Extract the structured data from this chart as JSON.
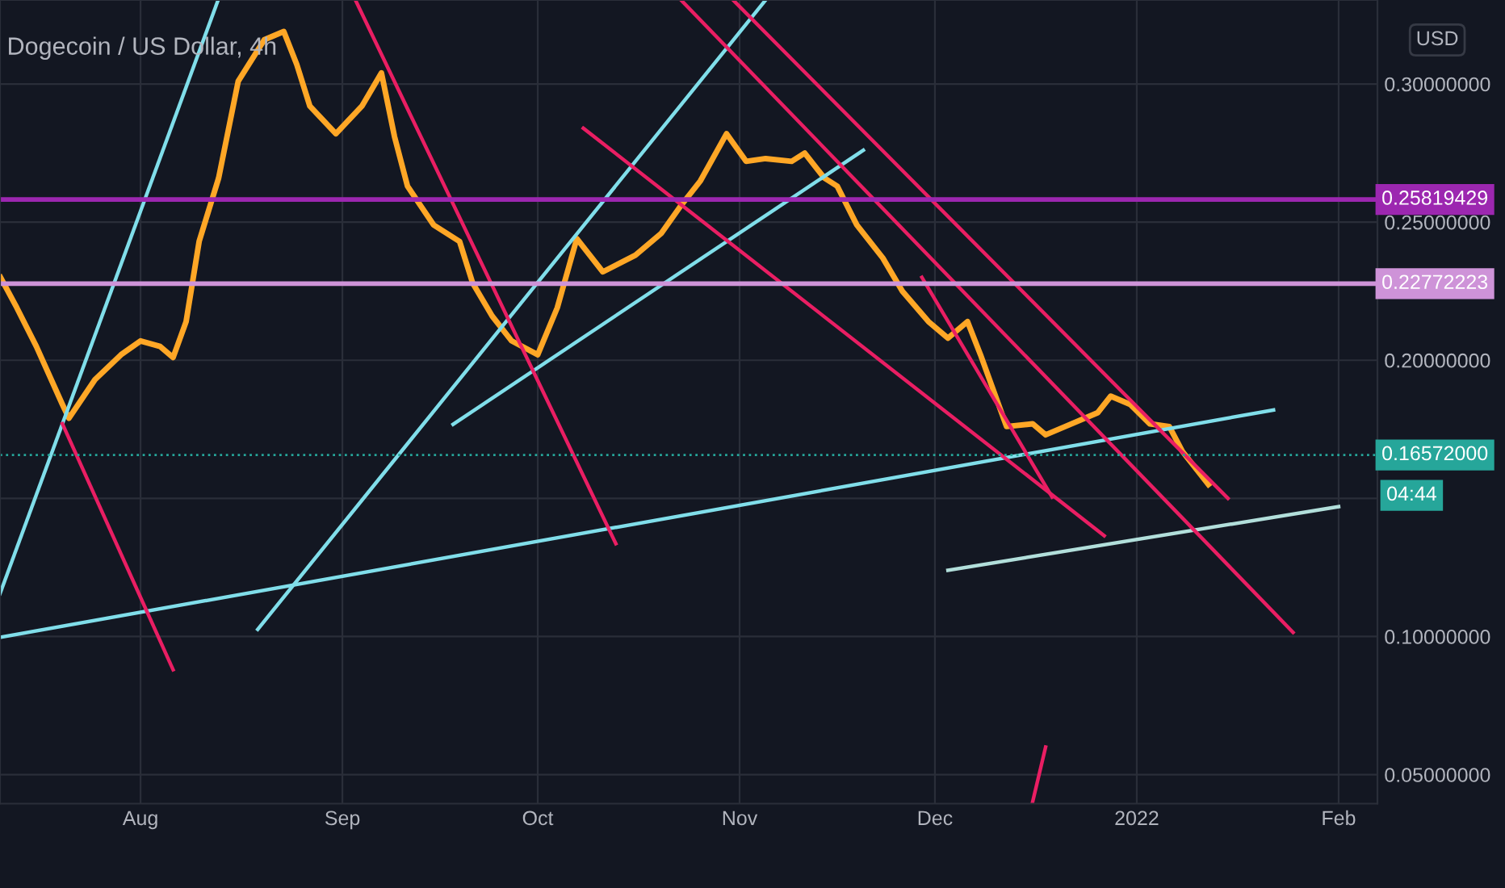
{
  "chart_data": {
    "type": "line",
    "title": "Dogecoin / US Dollar, 4h",
    "ylabel": "USD",
    "xlim": [
      "2021-07-10T10:00",
      "2022-02-06T23:00"
    ],
    "xticks": [
      {
        "value": "2021-08-01",
        "label": "Aug"
      },
      {
        "value": "2021-09-01",
        "label": "Sep"
      },
      {
        "value": "2021-10-01",
        "label": "Oct"
      },
      {
        "value": "2021-11-01",
        "label": "Nov"
      },
      {
        "value": "2021-12-01",
        "label": "Dec"
      },
      {
        "value": "2022-01-01",
        "label": "2022"
      },
      {
        "value": "2022-02-01",
        "label": "Feb"
      }
    ],
    "ylim": [
      0.0395,
      0.3304
    ],
    "yticks": [
      {
        "value": 0.05,
        "label": "0.05000000"
      },
      {
        "value": 0.1,
        "label": "0.10000000"
      },
      {
        "value": 0.15,
        "label": null
      },
      {
        "value": 0.2,
        "label": "0.20000000"
      },
      {
        "value": 0.25,
        "label": "0.25000000"
      },
      {
        "value": 0.3,
        "label": "0.30000000"
      }
    ],
    "grid": true,
    "legend": false,
    "line_style": "solid",
    "series": [
      {
        "type": "line",
        "color": "#ffa726",
        "x": [
          "2021-07-10T12:00",
          "2021-07-13",
          "2021-07-16",
          "2021-07-20",
          "2021-07-21",
          "2021-07-25",
          "2021-07-29",
          "2021-08-01",
          "2021-08-04",
          "2021-08-06",
          "2021-08-08",
          "2021-08-10",
          "2021-08-13",
          "2021-08-16",
          "2021-08-20",
          "2021-08-23",
          "2021-08-25",
          "2021-08-27",
          "2021-08-31",
          "2021-09-04",
          "2021-09-07",
          "2021-09-09",
          "2021-09-11",
          "2021-09-15",
          "2021-09-19",
          "2021-09-21",
          "2021-09-24",
          "2021-09-27",
          "2021-10-01",
          "2021-10-04",
          "2021-10-07",
          "2021-10-11",
          "2021-10-16",
          "2021-10-20",
          "2021-10-23",
          "2021-10-26",
          "2021-10-30",
          "2021-11-02",
          "2021-11-05",
          "2021-11-09",
          "2021-11-11",
          "2021-11-14",
          "2021-11-16",
          "2021-11-19",
          "2021-11-23",
          "2021-11-26",
          "2021-11-30",
          "2021-12-03",
          "2021-12-06",
          "2021-12-08",
          "2021-12-12",
          "2021-12-16",
          "2021-12-18",
          "2021-12-21",
          "2021-12-26",
          "2021-12-28",
          "2021-12-31",
          "2022-01-03",
          "2022-01-06",
          "2022-01-08",
          "2022-01-11",
          "2022-01-12"
        ],
        "values": [
          0.23,
          0.219,
          0.205,
          0.184,
          0.179,
          0.193,
          0.202,
          0.207,
          0.205,
          0.201,
          0.214,
          0.243,
          0.266,
          0.301,
          0.316,
          0.319,
          0.307,
          0.292,
          0.282,
          0.292,
          0.304,
          0.281,
          0.263,
          0.249,
          0.243,
          0.228,
          0.216,
          0.207,
          0.202,
          0.219,
          0.244,
          0.232,
          0.238,
          0.246,
          0.256,
          0.265,
          0.282,
          0.272,
          0.273,
          0.272,
          0.275,
          0.266,
          0.263,
          0.249,
          0.237,
          0.225,
          0.214,
          0.208,
          0.214,
          0.202,
          0.176,
          0.177,
          0.173,
          0.176,
          0.181,
          0.187,
          0.184,
          0.177,
          0.176,
          0.167,
          0.158,
          0.155
        ]
      },
      {
        "type": "line",
        "color": "#80deea",
        "x": [
          "2021-07-10T10:00",
          "2021-08-12T22:00"
        ],
        "values": [
          0.1155,
          0.3304
        ]
      },
      {
        "type": "line",
        "color": "#80deea",
        "x": [
          "2021-07-10T10:00",
          "2022-01-22"
        ],
        "values": [
          0.0997,
          0.182
        ]
      },
      {
        "type": "line",
        "color": "#80deea",
        "x": [
          "2021-08-19",
          "2021-11-05"
        ],
        "values": [
          0.1026,
          0.3304
        ]
      },
      {
        "type": "line",
        "color": "#80deea",
        "x": [
          "2021-09-18",
          "2021-11-20"
        ],
        "values": [
          0.1768,
          0.276
        ]
      },
      {
        "type": "line",
        "color": "#b2dfdb",
        "x": [
          "2021-12-03",
          "2022-02-01"
        ],
        "values": [
          0.124,
          0.147
        ]
      },
      {
        "type": "line",
        "color": "#e91e63",
        "x": [
          "2021-07-20",
          "2021-08-06"
        ],
        "values": [
          0.177,
          0.088
        ]
      },
      {
        "type": "line",
        "color": "#e91e63",
        "x": [
          "2021-09-03",
          "2021-10-13"
        ],
        "values": [
          0.3304,
          0.1336
        ]
      },
      {
        "type": "line",
        "color": "#e91e63",
        "x": [
          "2021-10-08",
          "2021-12-27"
        ],
        "values": [
          0.284,
          0.1365
        ]
      },
      {
        "type": "line",
        "color": "#e91e63",
        "x": [
          "2021-10-23",
          "2022-01-25"
        ],
        "values": [
          0.3304,
          0.1015
        ]
      },
      {
        "type": "line",
        "color": "#e91e63",
        "x": [
          "2021-10-31",
          "2022-01-15"
        ],
        "values": [
          0.3304,
          0.15
        ]
      },
      {
        "type": "line",
        "color": "#e91e63",
        "x": [
          "2021-11-29",
          "2021-12-19"
        ],
        "values": [
          0.23,
          0.1505
        ]
      },
      {
        "type": "line",
        "color": "#e91e63",
        "x": [
          "2021-12-16",
          "2021-12-18"
        ],
        "values": [
          0.0401,
          0.06
        ]
      }
    ],
    "ref_lines": [
      {
        "axis": "y",
        "value": 0.25819429,
        "label": "0.25819429",
        "color": "#9c27b0",
        "line_style": "solid"
      },
      {
        "axis": "y",
        "value": 0.22772223,
        "label": "0.22772223",
        "color": "#ce93d8",
        "line_style": "solid"
      },
      {
        "axis": "y",
        "value": 0.16572,
        "label": "0.16572000",
        "color": "#26a69a",
        "line_style": "dotted"
      }
    ],
    "annotations": [
      {
        "text": "04:44",
        "x": "2022-02-06T23:00",
        "y": 0.16572
      }
    ]
  }
}
